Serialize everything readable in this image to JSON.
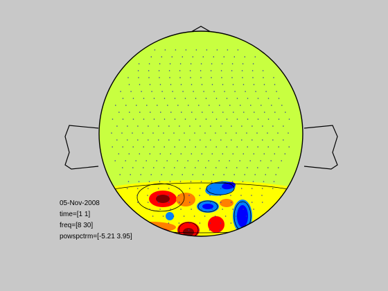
{
  "chart_data": {
    "type": "heatmap",
    "subtype": "topoplot",
    "head_colors": {
      "outline": "#000000",
      "background": "#c8c8c8",
      "electrode": "#3040a0",
      "baseline_fill": "#c8ff40"
    },
    "colormap": [
      "#00008f",
      "#0000ff",
      "#0080ff",
      "#00ffff",
      "#80ff80",
      "#c8ff40",
      "#ffff00",
      "#ff8000",
      "#ff0000",
      "#800000"
    ],
    "zlim": [
      -5.21,
      3.95
    ],
    "info_lines": [
      "05-Nov-2008",
      "time=[1 1]",
      "freq=[8 30]",
      "powspctrm=[-5.21 3.95]"
    ]
  }
}
